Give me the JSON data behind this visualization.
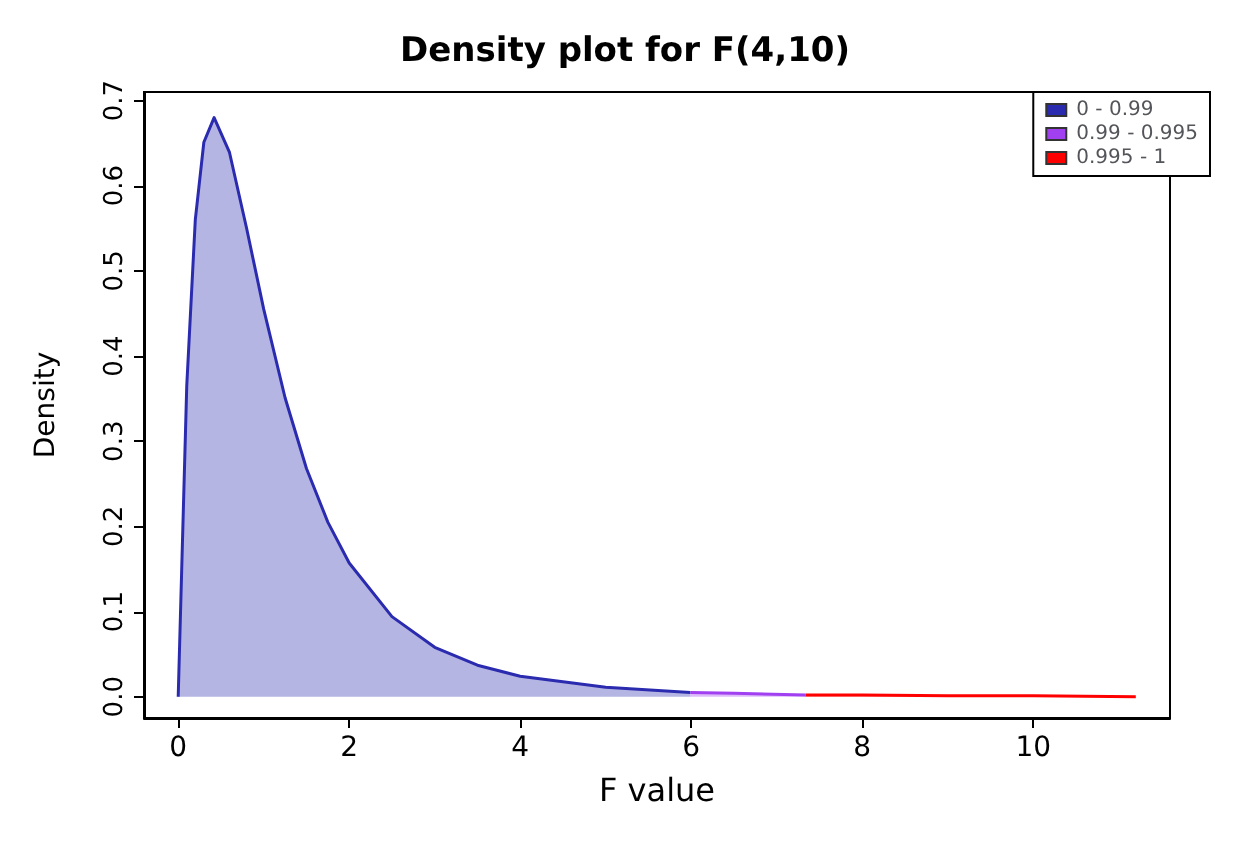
{
  "chart_data": {
    "type": "area",
    "title": "Density plot for F(4,10)",
    "xlabel": "F value",
    "ylabel": "Density",
    "xlim": [
      -0.4,
      11.6
    ],
    "ylim": [
      -0.025,
      0.71
    ],
    "xticks": [
      0,
      2,
      4,
      6,
      8,
      10
    ],
    "yticks": [
      {
        "value": 0,
        "label": "0.0"
      },
      0.1,
      0.2,
      0.3,
      0.4,
      0.5,
      0.6,
      0.7
    ],
    "legend": "top right",
    "grid": false,
    "marker": "none",
    "line_style": "solid",
    "series": [
      {
        "name": "0 - 0.99",
        "color": "#2b2bb0",
        "x": [
          0,
          0,
          0.1,
          0.2,
          0.3,
          0.42,
          0.6,
          0.8,
          1.0,
          1.25,
          1.5,
          1.75,
          2.0,
          2.5,
          3.0,
          3.5,
          4.0,
          5.0,
          5.99
        ],
        "values": [
          0,
          0,
          0.365,
          0.56,
          0.651,
          0.68,
          0.639,
          0.55,
          0.455,
          0.351,
          0.268,
          0.205,
          0.157,
          0.094,
          0.058,
          0.037,
          0.024,
          0.011,
          0.005
        ]
      },
      {
        "name": "0.99 - 0.995",
        "color": "#a040f0",
        "x": [
          5.99,
          6.5,
          7.34
        ],
        "values": [
          0.005,
          0.004,
          0.002
        ]
      },
      {
        "name": "0.995 - 1",
        "color": "#ff0000",
        "x": [
          7.34,
          8,
          9,
          10,
          11.2
        ],
        "values": [
          0.002,
          0.002,
          0.001,
          0.001,
          0
        ]
      }
    ]
  }
}
